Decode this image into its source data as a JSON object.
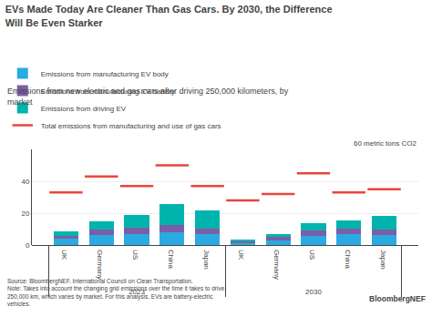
{
  "chart_data": {
    "type": "bar",
    "stacked": true,
    "title": "EVs Made Today Are Cleaner Than Gas Cars. By 2030, the Difference\nWill Be Even Starker",
    "subtitle": "Emissions from new electric and gas cars after driving 250,000 kilometers, by\nmarket",
    "ylabel": "60 metric tons CO2",
    "groups": [
      {
        "name": "2023",
        "categories": [
          "UK",
          "Germany",
          "US",
          "China",
          "Japan"
        ]
      },
      {
        "name": "2030",
        "categories": [
          "UK",
          "Germany",
          "US",
          "China",
          "Japan"
        ]
      }
    ],
    "series": [
      {
        "name": "Emissions from manufacturing EV body",
        "color": "#29ABE2",
        "values": [
          4.0,
          6.5,
          7.0,
          8.0,
          7.0,
          1.5,
          3.0,
          5.5,
          7.0,
          6.5
        ]
      },
      {
        "name": "Emissions from manufacturing EV battery",
        "color": "#7B5EA7",
        "values": [
          2.0,
          3.5,
          4.0,
          4.5,
          3.5,
          1.0,
          2.0,
          3.5,
          3.5,
          3.0
        ]
      },
      {
        "name": "Emissions from driving EV",
        "color": "#00B4AD",
        "values": [
          2.5,
          5.0,
          8.0,
          13.0,
          11.5,
          0.5,
          2.0,
          5.0,
          5.0,
          9.0
        ]
      },
      {
        "name": "Total emissions from manufacturing and use of gas cars",
        "color": "#E8463C",
        "type": "scatter",
        "marker": "line-ew",
        "values": [
          33.0,
          43.0,
          37.0,
          50.0,
          37.0,
          28.0,
          32.0,
          45.0,
          33.0,
          35.0
        ]
      }
    ],
    "ylim": [
      0,
      60
    ],
    "yticks": [
      0,
      20,
      40
    ],
    "grid": true,
    "legend": "top",
    "source": "Source: BloombergNEF, International Council on Clean Transportation.\nNote: Takes into account the changing grid emissions over the time it takes to drive\n250,000 km, which varies by market. For this analysis, EVs are battery-electric\nvehicles.",
    "brand": "BloombergNEF"
  }
}
